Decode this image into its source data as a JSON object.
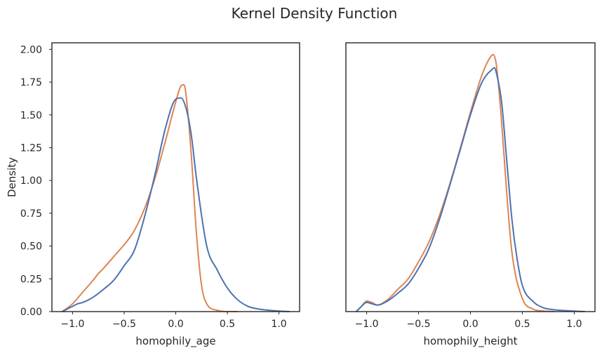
{
  "figure": {
    "title": "Kernel Density Function"
  },
  "chart_data": [
    {
      "type": "line",
      "xlabel": "homophily_age",
      "ylabel": "Density",
      "xlim": [
        -1.2,
        1.2
      ],
      "ylim": [
        0,
        2.05
      ],
      "xticks": [
        -1.0,
        -0.5,
        0.0,
        0.5,
        1.0
      ],
      "xtick_labels": [
        "−1.0",
        "−0.5",
        "0.0",
        "0.5",
        "1.0"
      ],
      "yticks": [
        0,
        0.25,
        0.5,
        0.75,
        1.0,
        1.25,
        1.5,
        1.75,
        2.0
      ],
      "ytick_labels": [
        "0.00",
        "0.25",
        "0.50",
        "0.75",
        "1.00",
        "1.25",
        "1.50",
        "1.75",
        "2.00"
      ],
      "grid": false,
      "series": [
        {
          "color": "#dd8452",
          "x": [
            -1.1,
            -1.0,
            -0.9,
            -0.8,
            -0.75,
            -0.7,
            -0.6,
            -0.5,
            -0.45,
            -0.4,
            -0.3,
            -0.2,
            -0.1,
            0.0,
            0.05,
            0.08,
            0.1,
            0.15,
            0.2,
            0.25,
            0.3,
            0.4,
            0.5,
            0.6
          ],
          "y": [
            0.0,
            0.06,
            0.15,
            0.24,
            0.29,
            0.33,
            0.42,
            0.51,
            0.56,
            0.62,
            0.79,
            1.02,
            1.3,
            1.6,
            1.72,
            1.73,
            1.65,
            1.2,
            0.6,
            0.2,
            0.06,
            0.01,
            0.0,
            0.0
          ]
        },
        {
          "color": "#4c72b0",
          "x": [
            -1.1,
            -1.0,
            -0.95,
            -0.9,
            -0.8,
            -0.7,
            -0.6,
            -0.5,
            -0.4,
            -0.3,
            -0.2,
            -0.1,
            0.0,
            0.05,
            0.1,
            0.15,
            0.2,
            0.3,
            0.4,
            0.5,
            0.6,
            0.7,
            0.8,
            1.0,
            1.1
          ],
          "y": [
            0.0,
            0.04,
            0.06,
            0.07,
            0.11,
            0.17,
            0.24,
            0.35,
            0.47,
            0.73,
            1.05,
            1.4,
            1.62,
            1.63,
            1.55,
            1.35,
            1.02,
            0.5,
            0.32,
            0.18,
            0.09,
            0.04,
            0.02,
            0.004,
            0.0
          ]
        }
      ]
    },
    {
      "type": "line",
      "xlabel": "homophily_height",
      "ylabel": "",
      "xlim": [
        -1.2,
        1.2
      ],
      "ylim": [
        0,
        2.05
      ],
      "xticks": [
        -1.0,
        -0.5,
        0.0,
        0.5,
        1.0
      ],
      "xtick_labels": [
        "−1.0",
        "−0.5",
        "0.0",
        "0.5",
        "1.0"
      ],
      "yticks": [],
      "ytick_labels": [],
      "grid": false,
      "series": [
        {
          "color": "#dd8452",
          "x": [
            -1.1,
            -1.05,
            -1.0,
            -0.95,
            -0.9,
            -0.8,
            -0.7,
            -0.6,
            -0.5,
            -0.4,
            -0.3,
            -0.2,
            -0.1,
            0.0,
            0.1,
            0.15,
            0.2,
            0.22,
            0.25,
            0.3,
            0.35,
            0.4,
            0.5,
            0.6,
            0.7,
            0.8
          ],
          "y": [
            0.0,
            0.04,
            0.08,
            0.07,
            0.05,
            0.09,
            0.17,
            0.25,
            0.38,
            0.53,
            0.73,
            0.97,
            1.24,
            1.52,
            1.78,
            1.88,
            1.95,
            1.96,
            1.88,
            1.45,
            0.9,
            0.45,
            0.1,
            0.02,
            0.005,
            0.0
          ]
        },
        {
          "color": "#4c72b0",
          "x": [
            -1.1,
            -1.05,
            -1.0,
            -0.95,
            -0.9,
            -0.8,
            -0.7,
            -0.6,
            -0.5,
            -0.4,
            -0.3,
            -0.2,
            -0.1,
            0.0,
            0.1,
            0.15,
            0.2,
            0.23,
            0.25,
            0.3,
            0.35,
            0.4,
            0.45,
            0.5,
            0.6,
            0.7,
            0.8,
            1.0,
            1.1
          ],
          "y": [
            0.0,
            0.04,
            0.07,
            0.06,
            0.05,
            0.08,
            0.14,
            0.21,
            0.33,
            0.48,
            0.7,
            0.96,
            1.23,
            1.5,
            1.73,
            1.8,
            1.84,
            1.86,
            1.82,
            1.6,
            1.15,
            0.7,
            0.4,
            0.2,
            0.08,
            0.03,
            0.015,
            0.004,
            0.0
          ]
        }
      ]
    }
  ]
}
